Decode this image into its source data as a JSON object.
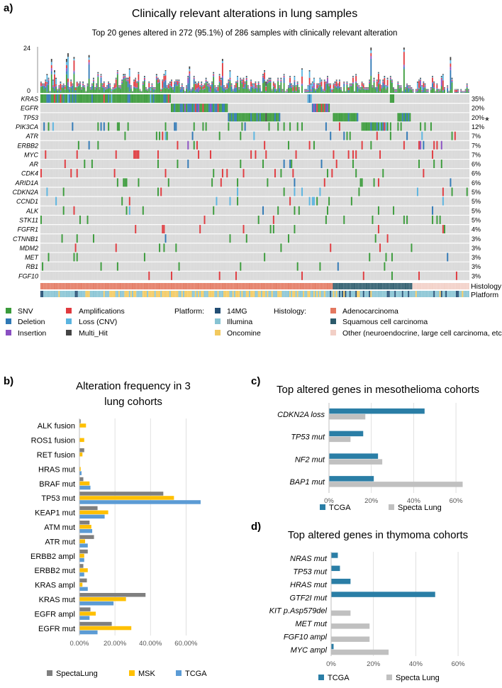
{
  "colors": {
    "snv": "#3a9b3a",
    "deletion": "#2f78b5",
    "insertion": "#8a4fc2",
    "amplification": "#e0393e",
    "loss_cnv": "#5ab4e0",
    "multi_hit": "#444444",
    "cell_bg": "#d8d8d8",
    "platform_14mg": "#234e74",
    "platform_illumina": "#86c3d3",
    "platform_oncomine": "#f2c95e",
    "hist_adeno": "#e37860",
    "hist_squamous": "#2b5a6b",
    "hist_other": "#f2cfc6",
    "spectalung": "#7f7f7f",
    "msk": "#ffc000",
    "tcga": "#5b9bd5",
    "tcga_dark": "#2a7ea6",
    "specta_light": "#c0c0c0"
  },
  "panel_a": {
    "label": "a)",
    "title": "Clinically relevant alterations in lung samples",
    "subtitle": "Top 20 genes altered in 272 (95.1%) of 286 samples with clinically relevant alteration",
    "ymax_label": "24",
    "ymin_label": "0",
    "histology_label": "Histology",
    "platform_label": "Platform",
    "asterisk": "*",
    "legend_types": [
      "SNV",
      "Deletion",
      "Insertion",
      "Amplifications",
      "Loss (CNV)",
      "Multi_Hit"
    ],
    "legend_platform_title": "Platform:",
    "legend_platforms": [
      "14MG",
      "Illumina",
      "Oncomine"
    ],
    "legend_histology_title": "Histology:",
    "legend_histologies": [
      "Adenocarcinoma",
      "Squamous cell carcinoma",
      "Other (neuroendocrine, large cell carcinoma, etc)"
    ]
  },
  "chart_data": [
    {
      "type": "heatmap",
      "title": "Clinically relevant alterations in lung samples",
      "subtitle": "Top 20 genes altered in 272 (95.1%) of 286 samples with clinically relevant alteration",
      "n_samples": 286,
      "genes": [
        "KRAS",
        "EGFR",
        "TP53",
        "PIK3CA",
        "ATR",
        "ERBB2",
        "MYC",
        "AR",
        "CDK4",
        "ARID1A",
        "CDKN2A",
        "CCND1",
        "ALK",
        "STK11",
        "FGFR1",
        "CTNNB1",
        "MDM2",
        "MET",
        "RB1",
        "FGF10"
      ],
      "percent_labels": [
        "35%",
        "20%",
        "20%",
        "12%",
        "7%",
        "7%",
        "7%",
        "6%",
        "6%",
        "6%",
        "5%",
        "5%",
        "5%",
        "5%",
        "4%",
        "3%",
        "3%",
        "3%",
        "3%",
        "3%"
      ],
      "top_bar_ylim": [
        0,
        24
      ]
    },
    {
      "type": "bar",
      "orientation": "horizontal",
      "label": "b)",
      "title": "Alteration frequency in 3 lung cohorts",
      "categories": [
        "ALK fusion",
        "ROS1 fusion",
        "RET fusion",
        "HRAS mut",
        "BRAF mut",
        "TP53 mut",
        "KEAP1 mut",
        "ATM mut",
        "ATR mut",
        "ERBB2 ampl",
        "ERBB2 mut",
        "KRAS ampl",
        "KRAS mut",
        "EGFR ampl",
        "EGFR mut"
      ],
      "series": [
        {
          "name": "SpectaLung",
          "values": [
            0.5,
            0.0,
            2.5,
            0.0,
            2.0,
            47.0,
            10.0,
            5.5,
            8.0,
            4.5,
            2.0,
            4.0,
            37.0,
            6.0,
            18.0
          ]
        },
        {
          "name": "MSK",
          "values": [
            3.5,
            2.5,
            1.5,
            0.5,
            5.5,
            53.0,
            16.0,
            6.5,
            3.0,
            2.5,
            4.5,
            1.5,
            26.0,
            9.0,
            29.0
          ]
        },
        {
          "name": "TCGA",
          "values": [
            0.0,
            0.0,
            0.0,
            1.0,
            6.0,
            68.0,
            14.0,
            7.0,
            4.5,
            2.5,
            2.5,
            4.5,
            19.0,
            5.5,
            10.0
          ]
        }
      ],
      "xticks": [
        "0.00%",
        "20.00%",
        "40.00%",
        "60.00%"
      ],
      "xlim": [
        0,
        75
      ]
    },
    {
      "type": "bar",
      "orientation": "horizontal",
      "label": "c)",
      "title": "Top altered genes in mesothelioma cohorts",
      "categories": [
        "CDKN2A loss",
        "TP53 mut",
        "NF2 mut",
        "BAP1 mut"
      ],
      "series": [
        {
          "name": "TCGA",
          "values": [
            45,
            16,
            23,
            21
          ]
        },
        {
          "name": "Specta Lung",
          "values": [
            17,
            10,
            25,
            63
          ]
        }
      ],
      "xticks": [
        "0%",
        "20%",
        "40%",
        "60%"
      ],
      "xlim": [
        0,
        65
      ]
    },
    {
      "type": "bar",
      "orientation": "horizontal",
      "label": "d)",
      "title": "Top altered genes in thymoma cohorts",
      "categories": [
        "NRAS mut",
        "TP53 mut",
        "HRAS mut",
        "GTF2I mut",
        "KIT p.Asp579del",
        "MET mut",
        "FGF10 ampl",
        "MYC ampl"
      ],
      "series": [
        {
          "name": "TCGA",
          "values": [
            3,
            4,
            9,
            49,
            0,
            0,
            0,
            1
          ]
        },
        {
          "name": "Specta Lung",
          "values": [
            0,
            0,
            0,
            0,
            9,
            18,
            18,
            27
          ]
        }
      ],
      "xticks": [
        "0%",
        "20%",
        "40%",
        "60%"
      ],
      "xlim": [
        0,
        65
      ]
    }
  ]
}
